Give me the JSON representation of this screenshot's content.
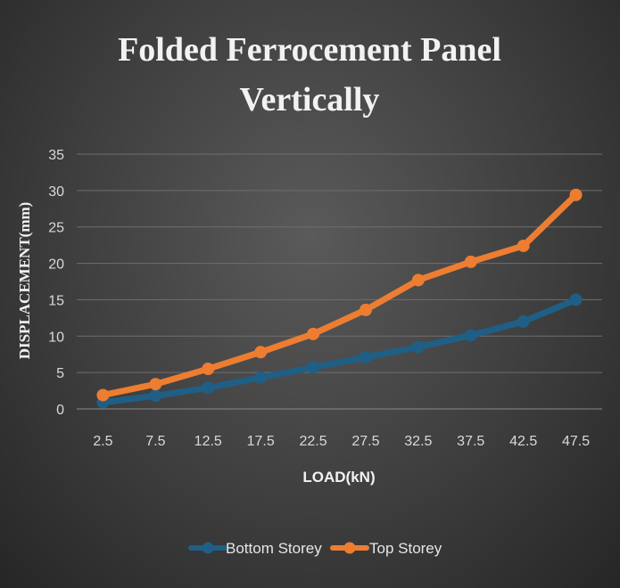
{
  "chart_data": {
    "type": "line",
    "title_line1": "Folded Ferrocement Panel",
    "title_line2": "Vertically",
    "xlabel": "LOAD(kN)",
    "ylabel": "DISPLACEMENT(mm)",
    "categories": [
      "2.5",
      "7.5",
      "12.5",
      "17.5",
      "22.5",
      "27.5",
      "32.5",
      "37.5",
      "42.5",
      "47.5"
    ],
    "yticks": [
      "0",
      "5",
      "10",
      "15",
      "20",
      "25",
      "30",
      "35"
    ],
    "ylim": [
      0,
      35
    ],
    "grid": true,
    "legend_position": "bottom",
    "series": [
      {
        "name": "Bottom Storey",
        "color": "#1f5f86",
        "values": [
          0.9,
          1.8,
          2.9,
          4.3,
          5.7,
          7.1,
          8.5,
          10.1,
          12.0,
          15.0
        ]
      },
      {
        "name": "Top Storey",
        "color": "#ed7d31",
        "values": [
          1.9,
          3.4,
          5.5,
          7.8,
          10.3,
          13.6,
          17.7,
          20.2,
          22.4,
          29.4
        ]
      }
    ]
  }
}
